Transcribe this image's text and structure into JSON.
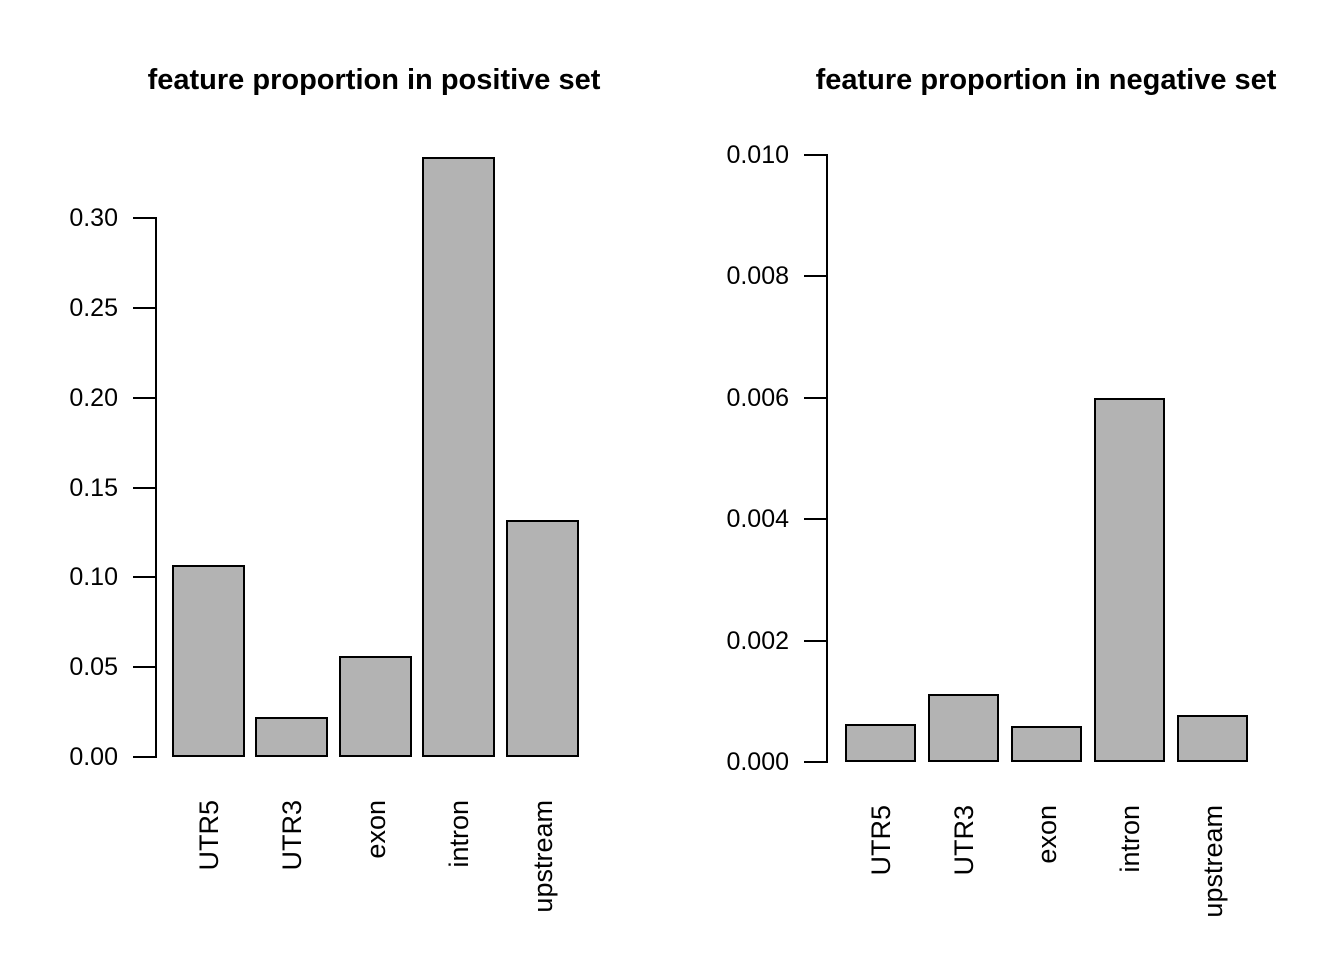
{
  "page": {
    "background": "#ffffff",
    "text_color": "#000000"
  },
  "chart_data": [
    {
      "type": "bar",
      "title": "feature proportion in positive set",
      "categories": [
        "UTR5",
        "UTR3",
        "exon",
        "intron",
        "upstream"
      ],
      "values": [
        0.107,
        0.022,
        0.056,
        0.334,
        0.132
      ],
      "xlabel": "",
      "ylabel": "",
      "ylim": [
        0,
        0.3
      ],
      "yticks": [
        "0.00",
        "0.05",
        "0.10",
        "0.15",
        "0.20",
        "0.25",
        "0.30"
      ],
      "grid": false,
      "legend": null,
      "bar_fill": "#b3b3b3",
      "bar_border": "#000000",
      "category_label_rotation": "vertical-bottom-to-top"
    },
    {
      "type": "bar",
      "title": "feature proportion in negative set",
      "categories": [
        "UTR5",
        "UTR3",
        "exon",
        "intron",
        "upstream"
      ],
      "values": [
        0.00062,
        0.00112,
        0.0006,
        0.006,
        0.00077
      ],
      "xlabel": "",
      "ylabel": "",
      "ylim": [
        0,
        0.01
      ],
      "yticks": [
        "0.000",
        "0.002",
        "0.004",
        "0.006",
        "0.008",
        "0.010"
      ],
      "grid": false,
      "legend": null,
      "bar_fill": "#b3b3b3",
      "bar_border": "#000000",
      "category_label_rotation": "vertical-bottom-to-top"
    }
  ]
}
